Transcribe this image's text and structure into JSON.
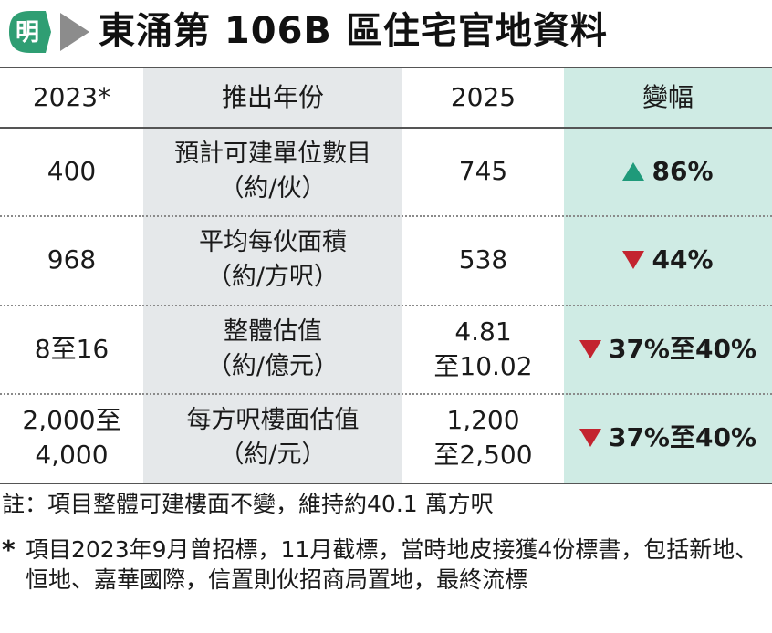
{
  "header": {
    "logo_char": "明",
    "title": "東涌第 106B 區住宅官地資料",
    "logo_green": "#2f9e73",
    "arrow_gray": "#8c8c8c"
  },
  "table": {
    "headers": {
      "y2023": "2023*",
      "item": "推出年份",
      "y2025": "2025",
      "change": "變幅"
    },
    "rows": [
      {
        "v2023": [
          "400"
        ],
        "label": [
          "預計可建單位數目",
          "（約/伙）"
        ],
        "v2025": [
          "745"
        ],
        "direction": "up",
        "change": "86%"
      },
      {
        "v2023": [
          "968"
        ],
        "label": [
          "平均每伙面積",
          "（約/方呎）"
        ],
        "v2025": [
          "538"
        ],
        "direction": "down",
        "change": "44%"
      },
      {
        "v2023": [
          "8至16"
        ],
        "label": [
          "整體估值",
          "（約/億元）"
        ],
        "v2025": [
          "4.81",
          "至10.02"
        ],
        "direction": "down",
        "change": "37%至40%"
      },
      {
        "v2023": [
          "2,000至",
          "4,000"
        ],
        "label": [
          "每方呎樓面估值",
          "（約/元）"
        ],
        "v2025": [
          "1,200",
          "至2,500"
        ],
        "direction": "down",
        "change": "37%至40%"
      }
    ],
    "colors": {
      "label_col_bg": "#e5e8ea",
      "change_col_bg": "#cfebe4",
      "up": "#1f9a7a",
      "down": "#c3242f"
    }
  },
  "notes": {
    "note1": "註：項目整體可建樓面不變，維持約40.1 萬方呎",
    "star": "*",
    "note2": "項目2023年9月曾招標，11月截標，當時地皮接獲4份標書，包括新地、恒地、嘉華國際，信置則伙招商局置地，最終流標"
  }
}
